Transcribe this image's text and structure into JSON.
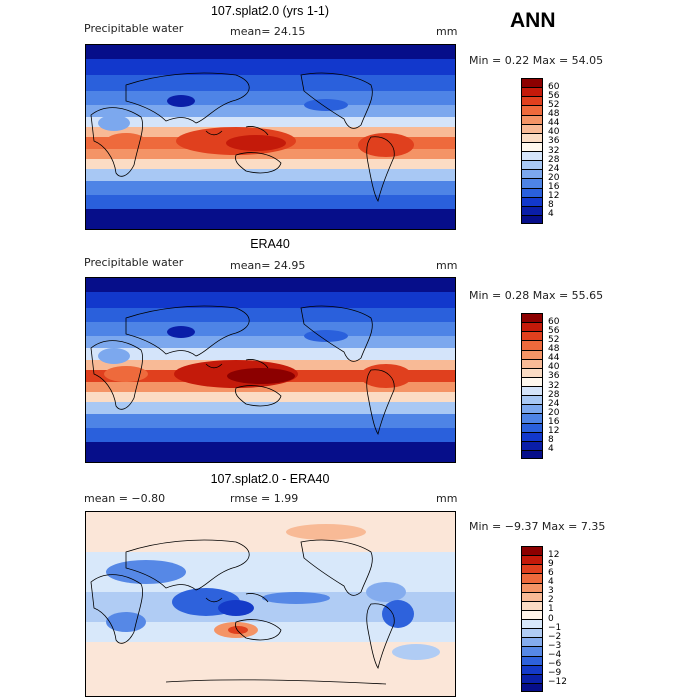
{
  "season": "ANN",
  "panels": [
    {
      "title": "107.splat2.0 (yrs 1-1)",
      "left_label": "Precipitable water",
      "mid_label": "mean=  24.15",
      "right_label": "mm",
      "minmax": "Min =    0.22 Max =  54.05",
      "colorbar": {
        "labels": [
          "60",
          "56",
          "52",
          "48",
          "44",
          "40",
          "36",
          "32",
          "28",
          "24",
          "20",
          "16",
          "12",
          "8",
          "4"
        ],
        "colors": [
          "#8c0000",
          "#c41a0a",
          "#e0401e",
          "#ee6a3c",
          "#f49466",
          "#f8ba96",
          "#fbdcc4",
          "#fff8ee",
          "#d4e4fa",
          "#a8c8f4",
          "#7ca8ee",
          "#4e84e6",
          "#2a60dc",
          "#1238cc",
          "#0a1ea8",
          "#060e8a"
        ]
      }
    },
    {
      "title": "ERA40",
      "left_label": "Precipitable water",
      "mid_label": "mean=  24.95",
      "right_label": "mm",
      "minmax": "Min =    0.28 Max =  55.65",
      "colorbar": {
        "labels": [
          "60",
          "56",
          "52",
          "48",
          "44",
          "40",
          "36",
          "32",
          "28",
          "24",
          "20",
          "16",
          "12",
          "8",
          "4"
        ],
        "colors": [
          "#8c0000",
          "#c41a0a",
          "#e0401e",
          "#ee6a3c",
          "#f49466",
          "#f8ba96",
          "#fbdcc4",
          "#fff8ee",
          "#d4e4fa",
          "#a8c8f4",
          "#7ca8ee",
          "#4e84e6",
          "#2a60dc",
          "#1238cc",
          "#0a1ea8",
          "#060e8a"
        ]
      }
    },
    {
      "title": "107.splat2.0 - ERA40",
      "left_label": "mean =   −0.80",
      "mid_label": "rmse =    1.99",
      "right_label": "mm",
      "minmax": "Min =  −9.37 Max =    7.35",
      "colorbar": {
        "labels": [
          "12",
          "9",
          "6",
          "4",
          "3",
          "2",
          "1",
          "0",
          "−1",
          "−2",
          "−3",
          "−4",
          "−6",
          "−9",
          "−12"
        ],
        "colors": [
          "#8c0000",
          "#c41a0a",
          "#e0401e",
          "#ee6a3c",
          "#f49466",
          "#f8ba96",
          "#fbdcc4",
          "#fff4ea",
          "#d8e8fa",
          "#b0ccf4",
          "#84acee",
          "#5688e6",
          "#2e62dc",
          "#143ac8",
          "#0a20a8",
          "#060e8a"
        ]
      }
    }
  ]
}
